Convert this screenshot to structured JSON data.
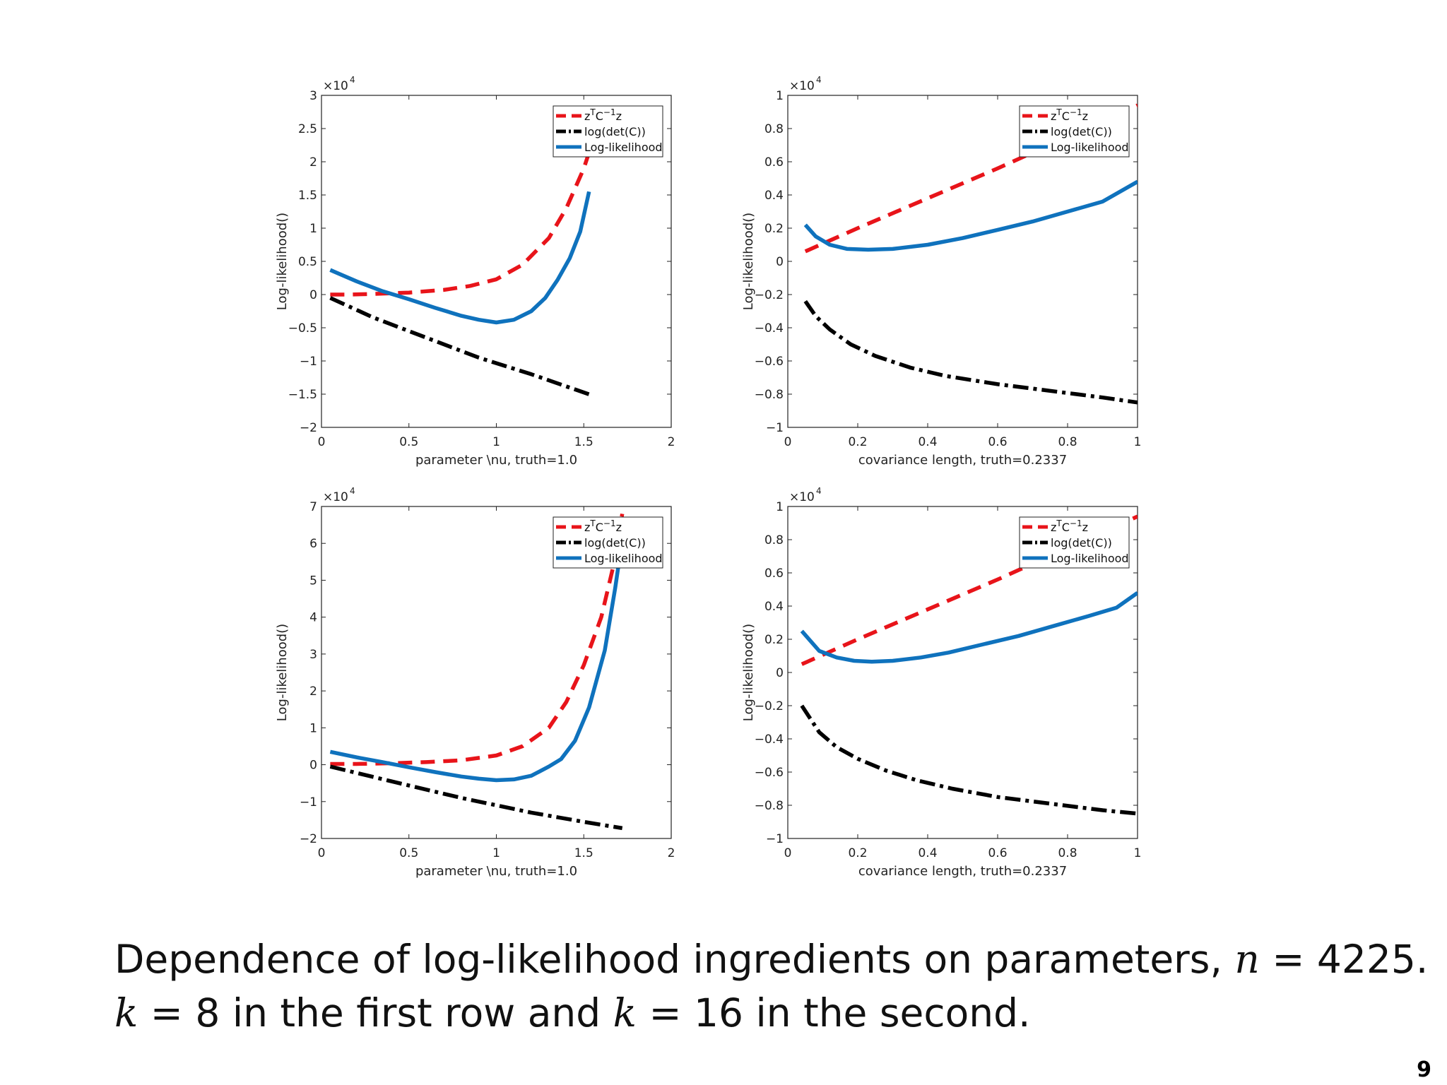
{
  "slide": {
    "caption_line1_text": "Dependence of log-likelihood ingredients on parameters, ",
    "caption_line1_var": "n",
    "caption_line1_eq": " = 4225.",
    "caption_line2_var1": "k",
    "caption_line2_mid": " = 8 in the first row and ",
    "caption_line2_var2": "k",
    "caption_line2_end": " = 16 in the second.",
    "page_number": "9"
  },
  "colors": {
    "red": "#e8141a",
    "black": "#000000",
    "blue": "#0f72bd"
  },
  "chart_data": [
    {
      "type": "line",
      "xlabel": "parameter \\nu, truth=1.0",
      "ylabel": "Log-likelihood()",
      "xlim": [
        0,
        2
      ],
      "ylim": [
        -2,
        3
      ],
      "xticks": [
        0,
        0.5,
        1,
        1.5,
        2
      ],
      "xtick_labels": [
        "0",
        "0.5",
        "1",
        "1.5",
        "2"
      ],
      "yticks": [
        -2,
        -1.5,
        -1,
        -0.5,
        0,
        0.5,
        1,
        1.5,
        2,
        2.5,
        3
      ],
      "ytick_labels": [
        "-2",
        "-1.5",
        "-1",
        "-0.5",
        "0",
        "0.5",
        "1",
        "1.5",
        "2",
        "2.5",
        "3"
      ],
      "scale_label": "×10",
      "scale_exp": "4",
      "legend": [
        "zTC-1z",
        "log(det(C))",
        "Log-likelihood"
      ],
      "legend_position": "top-right",
      "series": [
        {
          "name": "zTC-1z",
          "style": "dashed",
          "color": "red",
          "x": [
            0.05,
            0.15,
            0.3,
            0.5,
            0.7,
            0.85,
            1.0,
            1.15,
            1.3,
            1.4,
            1.5,
            1.6
          ],
          "y": [
            0.0,
            0.0,
            0.01,
            0.03,
            0.07,
            0.13,
            0.23,
            0.45,
            0.85,
            1.3,
            1.9,
            2.7
          ]
        },
        {
          "name": "log(det(C))",
          "style": "dashdot",
          "color": "black",
          "x": [
            0.05,
            0.3,
            0.6,
            0.9,
            1.2,
            1.55
          ],
          "y": [
            -0.05,
            -0.35,
            -0.65,
            -0.95,
            -1.2,
            -1.52
          ]
        },
        {
          "name": "Log-likelihood",
          "style": "solid",
          "color": "blue",
          "x": [
            0.05,
            0.2,
            0.35,
            0.5,
            0.65,
            0.8,
            0.9,
            1.0,
            1.1,
            1.2,
            1.28,
            1.35,
            1.42,
            1.48,
            1.53
          ],
          "y": [
            0.37,
            0.2,
            0.05,
            -0.07,
            -0.2,
            -0.32,
            -0.38,
            -0.42,
            -0.38,
            -0.25,
            -0.05,
            0.22,
            0.55,
            0.95,
            1.55
          ]
        }
      ]
    },
    {
      "type": "line",
      "xlabel": "covariance length, truth=0.2337",
      "ylabel": "Log-likelihood()",
      "xlim": [
        0,
        1
      ],
      "ylim": [
        -1,
        1
      ],
      "xticks": [
        0,
        0.2,
        0.4,
        0.6,
        0.8,
        1
      ],
      "xtick_labels": [
        "0",
        "0.2",
        "0.4",
        "0.6",
        "0.8",
        "1"
      ],
      "yticks": [
        -1,
        -0.8,
        -0.6,
        -0.4,
        -0.2,
        0,
        0.2,
        0.4,
        0.6,
        0.8,
        1
      ],
      "ytick_labels": [
        "-1",
        "-0.8",
        "-0.6",
        "-0.4",
        "-0.2",
        "0",
        "0.2",
        "0.4",
        "0.6",
        "0.8",
        "1"
      ],
      "scale_label": "×10",
      "scale_exp": "4",
      "legend": [
        "zTC-1z",
        "log(det(C))",
        "Log-likelihood"
      ],
      "legend_position": "top-right",
      "series": [
        {
          "name": "zTC-1z",
          "style": "dashed",
          "color": "red",
          "x": [
            0.05,
            0.2,
            0.4,
            0.6,
            0.8,
            1.0
          ],
          "y": [
            0.06,
            0.2,
            0.38,
            0.56,
            0.75,
            0.94
          ]
        },
        {
          "name": "log(det(C))",
          "style": "dashdot",
          "color": "black",
          "x": [
            0.05,
            0.08,
            0.12,
            0.18,
            0.25,
            0.35,
            0.45,
            0.6,
            0.75,
            0.9,
            1.0
          ],
          "y": [
            -0.24,
            -0.33,
            -0.41,
            -0.5,
            -0.57,
            -0.64,
            -0.69,
            -0.74,
            -0.78,
            -0.82,
            -0.85
          ]
        },
        {
          "name": "Log-likelihood",
          "style": "solid",
          "color": "blue",
          "x": [
            0.05,
            0.08,
            0.12,
            0.17,
            0.23,
            0.3,
            0.4,
            0.5,
            0.6,
            0.7,
            0.8,
            0.9,
            1.0
          ],
          "y": [
            0.22,
            0.15,
            0.1,
            0.075,
            0.07,
            0.075,
            0.1,
            0.14,
            0.19,
            0.24,
            0.3,
            0.36,
            0.48
          ]
        }
      ]
    },
    {
      "type": "line",
      "xlabel": "parameter \\nu, truth=1.0",
      "ylabel": "Log-likelihood()",
      "xlim": [
        0,
        2
      ],
      "ylim": [
        -2,
        7
      ],
      "xticks": [
        0,
        0.5,
        1,
        1.5,
        2
      ],
      "xtick_labels": [
        "0",
        "0.5",
        "1",
        "1.5",
        "2"
      ],
      "yticks": [
        -2,
        -1,
        0,
        1,
        2,
        3,
        4,
        5,
        6,
        7
      ],
      "ytick_labels": [
        "-2",
        "-1",
        "0",
        "1",
        "2",
        "3",
        "4",
        "5",
        "6",
        "7"
      ],
      "scale_label": "×10",
      "scale_exp": "4",
      "legend": [
        "zTC-1z",
        "log(det(C))",
        "Log-likelihood"
      ],
      "legend_position": "top-right",
      "series": [
        {
          "name": "zTC-1z",
          "style": "dashed",
          "color": "red",
          "x": [
            0.05,
            0.2,
            0.4,
            0.6,
            0.8,
            1.0,
            1.15,
            1.3,
            1.4,
            1.5,
            1.6,
            1.67,
            1.72
          ],
          "y": [
            0.02,
            0.02,
            0.04,
            0.07,
            0.12,
            0.25,
            0.5,
            1.0,
            1.7,
            2.7,
            4.0,
            5.4,
            6.8
          ]
        },
        {
          "name": "log(det(C))",
          "style": "dashdot",
          "color": "black",
          "x": [
            0.05,
            0.4,
            0.8,
            1.2,
            1.5,
            1.72
          ],
          "y": [
            -0.05,
            -0.45,
            -0.9,
            -1.3,
            -1.55,
            -1.72
          ]
        },
        {
          "name": "Log-likelihood",
          "style": "solid",
          "color": "blue",
          "x": [
            0.05,
            0.2,
            0.35,
            0.5,
            0.65,
            0.8,
            0.9,
            1.0,
            1.1,
            1.2,
            1.3,
            1.37,
            1.45,
            1.53,
            1.62,
            1.68,
            1.72
          ],
          "y": [
            0.35,
            0.2,
            0.07,
            -0.07,
            -0.2,
            -0.32,
            -0.38,
            -0.42,
            -0.4,
            -0.3,
            -0.05,
            0.15,
            0.65,
            1.55,
            3.1,
            4.8,
            6.1
          ]
        }
      ]
    },
    {
      "type": "line",
      "xlabel": "covariance length, truth=0.2337",
      "ylabel": "Log-likelihood()",
      "xlim": [
        0,
        1
      ],
      "ylim": [
        -1,
        1
      ],
      "xticks": [
        0,
        0.2,
        0.4,
        0.6,
        0.8,
        1
      ],
      "xtick_labels": [
        "0",
        "0.2",
        "0.4",
        "0.6",
        "0.8",
        "1"
      ],
      "yticks": [
        -1,
        -0.8,
        -0.6,
        -0.4,
        -0.2,
        0,
        0.2,
        0.4,
        0.6,
        0.8,
        1
      ],
      "ytick_labels": [
        "-1",
        "-0.8",
        "-0.6",
        "-0.4",
        "-0.2",
        "0",
        "0.2",
        "0.4",
        "0.6",
        "0.8",
        "1"
      ],
      "scale_label": "×10",
      "scale_exp": "4",
      "legend": [
        "zTC-1z",
        "log(det(C))",
        "Log-likelihood"
      ],
      "legend_position": "top-right",
      "series": [
        {
          "name": "zTC-1z",
          "style": "dashed",
          "color": "red",
          "x": [
            0.04,
            0.2,
            0.4,
            0.6,
            0.8,
            1.0
          ],
          "y": [
            0.05,
            0.2,
            0.38,
            0.56,
            0.75,
            0.94
          ]
        },
        {
          "name": "log(det(C))",
          "style": "dashdot",
          "color": "black",
          "x": [
            0.04,
            0.09,
            0.14,
            0.2,
            0.28,
            0.37,
            0.47,
            0.6,
            0.75,
            0.9,
            1.0
          ],
          "y": [
            -0.2,
            -0.36,
            -0.45,
            -0.52,
            -0.59,
            -0.65,
            -0.7,
            -0.75,
            -0.79,
            -0.83,
            -0.85
          ]
        },
        {
          "name": "Log-likelihood",
          "style": "solid",
          "color": "blue",
          "x": [
            0.04,
            0.09,
            0.14,
            0.19,
            0.24,
            0.3,
            0.38,
            0.46,
            0.56,
            0.66,
            0.76,
            0.86,
            0.94,
            1.0
          ],
          "y": [
            0.25,
            0.13,
            0.09,
            0.07,
            0.065,
            0.07,
            0.09,
            0.12,
            0.17,
            0.22,
            0.28,
            0.34,
            0.39,
            0.48
          ]
        }
      ]
    }
  ]
}
